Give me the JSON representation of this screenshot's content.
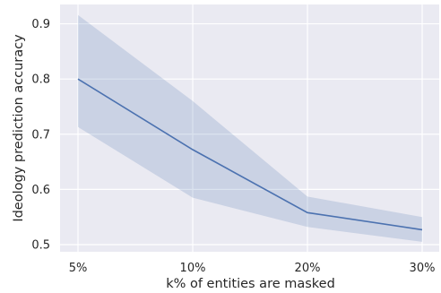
{
  "chart_data": {
    "type": "line",
    "title": "",
    "xlabel": "k% of entities are masked",
    "ylabel": "Ideology prediction accuracy",
    "categories": [
      "5%",
      "10%",
      "20%",
      "30%"
    ],
    "x": [
      5,
      10,
      20,
      30
    ],
    "series": [
      {
        "values": [
          0.8,
          0.672,
          0.558,
          0.527
        ],
        "lower": [
          0.713,
          0.585,
          0.532,
          0.505
        ],
        "upper": [
          0.916,
          0.76,
          0.587,
          0.55
        ]
      }
    ],
    "yticks": [
      0.5,
      0.6,
      0.7,
      0.8,
      0.9
    ],
    "ytick_labels": [
      "0.5",
      "0.6",
      "0.7",
      "0.8",
      "0.9"
    ],
    "ylim": [
      0.487,
      0.935
    ],
    "grid": true,
    "colors": {
      "background": "#eaeaf2",
      "grid": "#ffffff",
      "line": "#4c72b0",
      "band": "#4c72b0"
    }
  }
}
